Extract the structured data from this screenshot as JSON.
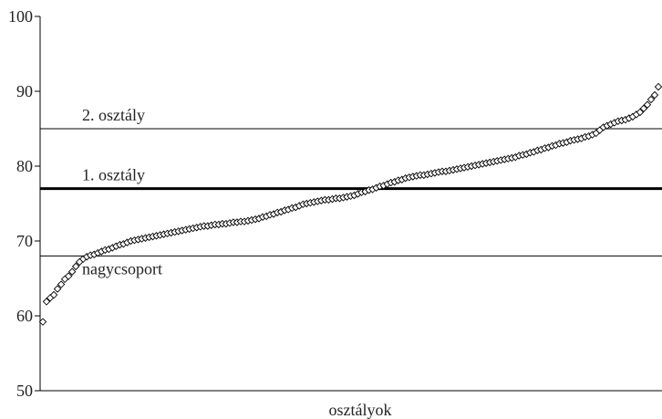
{
  "chart_data": {
    "type": "scatter",
    "xlabel": "osztályok",
    "ylabel": "",
    "ylim": [
      50,
      100
    ],
    "y_ticks": [
      50,
      60,
      70,
      80,
      90,
      100
    ],
    "marker": "diamond-open",
    "grid": false,
    "reference_lines": [
      {
        "label": "2. osztály",
        "value": 85,
        "weight": "thin"
      },
      {
        "label": "1. osztály",
        "value": 77,
        "weight": "bold"
      },
      {
        "label": "nagycsoport",
        "value": 68,
        "weight": "thin"
      }
    ],
    "series": [
      {
        "y": [
          59.2,
          61.9,
          62.4,
          62.8,
          63.6,
          64.2,
          64.9,
          65.3,
          65.9,
          66.6,
          67.2,
          67.6,
          67.9,
          68.1,
          68.2,
          68.4,
          68.6,
          68.8,
          68.9,
          69.1,
          69.3,
          69.5,
          69.6,
          69.8,
          70,
          70.1,
          70.2,
          70.3,
          70.4,
          70.5,
          70.6,
          70.7,
          70.8,
          70.9,
          71,
          71.1,
          71.2,
          71.3,
          71.4,
          71.5,
          71.6,
          71.7,
          71.8,
          71.9,
          72,
          72,
          72.1,
          72.2,
          72.2,
          72.3,
          72.3,
          72.4,
          72.5,
          72.5,
          72.6,
          72.6,
          72.7,
          72.8,
          72.9,
          73,
          73.2,
          73.3,
          73.5,
          73.6,
          73.8,
          73.9,
          74.1,
          74.2,
          74.4,
          74.5,
          74.7,
          74.9,
          75,
          75.1,
          75.2,
          75.3,
          75.4,
          75.5,
          75.5,
          75.6,
          75.7,
          75.7,
          75.8,
          75.9,
          76,
          76.1,
          76.3,
          76.5,
          76.6,
          76.8,
          76.9,
          77.1,
          77.3,
          77.4,
          77.6,
          77.8,
          77.9,
          78.1,
          78.2,
          78.4,
          78.5,
          78.6,
          78.7,
          78.8,
          78.8,
          78.9,
          79,
          79.1,
          79.2,
          79.3,
          79.3,
          79.4,
          79.5,
          79.6,
          79.7,
          79.8,
          79.9,
          80,
          80.1,
          80.2,
          80.3,
          80.4,
          80.5,
          80.6,
          80.7,
          80.8,
          80.9,
          81,
          81.1,
          81.2,
          81.4,
          81.5,
          81.6,
          81.8,
          81.9,
          82.1,
          82.2,
          82.4,
          82.5,
          82.7,
          82.8,
          83,
          83.1,
          83.2,
          83.4,
          83.5,
          83.6,
          83.7,
          83.9,
          84,
          84.2,
          84.4,
          84.8,
          85.2,
          85.4,
          85.6,
          85.8,
          86,
          86.1,
          86.2,
          86.4,
          86.6,
          86.9,
          87.2,
          87.7,
          88.2,
          88.9,
          89.5,
          90.6
        ]
      }
    ]
  }
}
